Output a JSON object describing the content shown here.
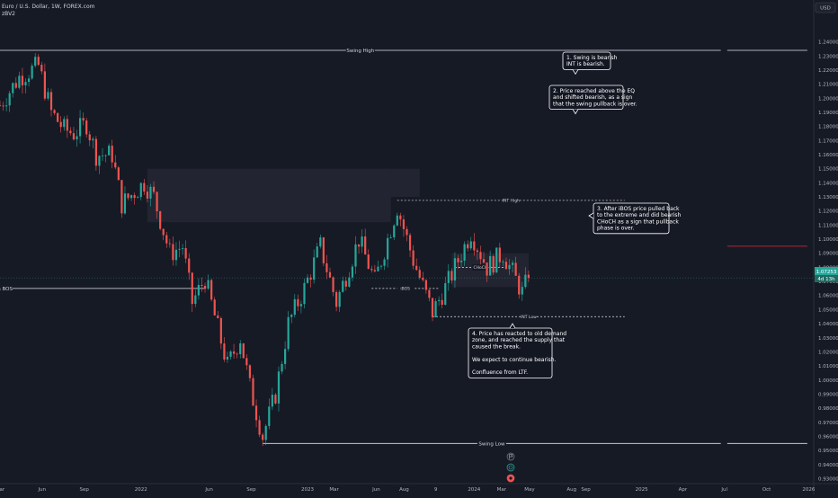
{
  "header": {
    "symbol_line": "Euro / U.S. Dollar, 1W, FOREX.com",
    "indicator": "zBV2",
    "currency_button": "USD"
  },
  "price_labels": {
    "last": "1.07253",
    "countdown": "4d 13h"
  },
  "colors": {
    "up": "#26a69a",
    "down": "#ef5350",
    "background": "#161a25",
    "line": "#e0e3eb",
    "zone": "#232733",
    "red_level": "#b22833"
  },
  "icons": [
    "flag-icon",
    "target-icon",
    "earnings-icon"
  ],
  "chart_data": {
    "type": "candlestick",
    "timeframe": "1W",
    "ylim": [
      0.9265,
      1.2557
    ],
    "y_ticks": [
      0.93,
      0.94,
      0.95,
      0.96,
      0.97,
      0.98,
      0.99,
      1.0,
      1.01,
      1.02,
      1.03,
      1.04,
      1.05,
      1.06,
      1.07,
      1.08,
      1.09,
      1.1,
      1.11,
      1.12,
      1.13,
      1.14,
      1.15,
      1.16,
      1.17,
      1.18,
      1.19,
      1.2,
      1.21,
      1.22,
      1.23,
      1.24
    ],
    "y_tick_labels": [
      "0.93000",
      "0.94000",
      "0.95000",
      "0.96000",
      "0.97000",
      "0.98000",
      "0.99000",
      "1.00000",
      "1.01000",
      "1.02000",
      "1.03000",
      "1.04000",
      "1.05000",
      "1.06000",
      "1.07000",
      "1.08000",
      "1.09000",
      "1.10000",
      "1.11000",
      "1.12000",
      "1.13000",
      "1.14000",
      "1.15000",
      "1.16000",
      "1.17000",
      "1.18000",
      "1.19000",
      "1.20000",
      "1.21000",
      "1.22000",
      "1.23000",
      "1.24000"
    ],
    "x_ticks": [
      {
        "label": "Mar",
        "date": "2021-03-01"
      },
      {
        "label": "Jun",
        "date": "2021-06-01"
      },
      {
        "label": "Sep",
        "date": "2021-09-01"
      },
      {
        "label": "2022",
        "date": "2022-01-03"
      },
      {
        "label": "Jun",
        "date": "2022-06-01"
      },
      {
        "label": "Sep",
        "date": "2022-09-01"
      },
      {
        "label": "2023",
        "date": "2023-01-02"
      },
      {
        "label": "Mar",
        "date": "2023-03-01"
      },
      {
        "label": "Jun",
        "date": "2023-06-01"
      },
      {
        "label": "Aug",
        "date": "2023-08-01"
      },
      {
        "label": "9",
        "date": "2023-10-09"
      },
      {
        "label": "2024",
        "date": "2024-01-01"
      },
      {
        "label": "Mar",
        "date": "2024-03-01"
      },
      {
        "label": "May",
        "date": "2024-05-01"
      },
      {
        "label": "Aug",
        "date": "2024-08-01"
      },
      {
        "label": "Sep",
        "date": "2024-09-01"
      },
      {
        "label": "2025",
        "date": "2025-01-01"
      },
      {
        "label": "Apr",
        "date": "2025-04-01"
      },
      {
        "label": "Jul",
        "date": "2025-07-01"
      },
      {
        "label": "Oct",
        "date": "2025-10-01"
      },
      {
        "label": "2026",
        "date": "2026-01-01"
      }
    ],
    "x_domain": [
      "2021-03-01",
      "2026-01-12"
    ],
    "waypoints": [
      {
        "date": "2021-03-01",
        "price": 1.195
      },
      {
        "date": "2021-04-12",
        "price": 1.215
      },
      {
        "date": "2021-05-24",
        "price": 1.223
      },
      {
        "date": "2021-06-21",
        "price": 1.19
      },
      {
        "date": "2021-07-19",
        "price": 1.178
      },
      {
        "date": "2021-08-09",
        "price": 1.175
      },
      {
        "date": "2021-09-06",
        "price": 1.182
      },
      {
        "date": "2021-09-27",
        "price": 1.16
      },
      {
        "date": "2021-11-01",
        "price": 1.16
      },
      {
        "date": "2021-11-22",
        "price": 1.125
      },
      {
        "date": "2022-01-10",
        "price": 1.14
      },
      {
        "date": "2022-01-31",
        "price": 1.13
      },
      {
        "date": "2022-03-07",
        "price": 1.09
      },
      {
        "date": "2022-04-04",
        "price": 1.095
      },
      {
        "date": "2022-04-25",
        "price": 1.055
      },
      {
        "date": "2022-05-23",
        "price": 1.072
      },
      {
        "date": "2022-07-11",
        "price": 1.01
      },
      {
        "date": "2022-08-08",
        "price": 1.03
      },
      {
        "date": "2022-08-29",
        "price": 0.995
      },
      {
        "date": "2022-09-26",
        "price": 0.96
      },
      {
        "date": "2022-10-24",
        "price": 0.99
      },
      {
        "date": "2022-11-21",
        "price": 1.04
      },
      {
        "date": "2022-12-26",
        "price": 1.065
      },
      {
        "date": "2023-01-30",
        "price": 1.095
      },
      {
        "date": "2023-03-06",
        "price": 1.055
      },
      {
        "date": "2023-04-24",
        "price": 1.1
      },
      {
        "date": "2023-05-29",
        "price": 1.07
      },
      {
        "date": "2023-07-17",
        "price": 1.123
      },
      {
        "date": "2023-08-21",
        "price": 1.085
      },
      {
        "date": "2023-10-02",
        "price": 1.048
      },
      {
        "date": "2023-11-06",
        "price": 1.07
      },
      {
        "date": "2023-12-25",
        "price": 1.105
      },
      {
        "date": "2024-01-29",
        "price": 1.08
      },
      {
        "date": "2024-03-04",
        "price": 1.09
      },
      {
        "date": "2024-04-15",
        "price": 1.062
      },
      {
        "date": "2024-04-29",
        "price": 1.0725
      }
    ],
    "levels": [
      {
        "name": "swing-high",
        "label": "Swing High",
        "price": 1.234,
        "from": "2021-03-01",
        "to": "2025-06-23"
      },
      {
        "name": "swing-high-extension",
        "label": "",
        "price": 1.234,
        "from": "2025-07-07",
        "to": "2025-12-29"
      },
      {
        "name": "swing-low",
        "label": "Swing Low",
        "price": 0.955,
        "from": "2022-09-26",
        "to": "2025-06-23"
      },
      {
        "name": "swing-low-extension",
        "label": "",
        "price": 0.955,
        "from": "2025-07-07",
        "to": "2025-12-29"
      },
      {
        "name": "bos",
        "label": "Bearish BOS",
        "price": 1.065,
        "from": "2021-03-01",
        "to": "2022-05-23"
      },
      {
        "name": "current-price",
        "label": "",
        "price": 1.0725,
        "from": "2021-03-01",
        "to": "2026-01-12"
      },
      {
        "name": "red-level",
        "label": "",
        "price": 1.095,
        "from": "2025-07-07",
        "to": "2025-12-29"
      }
    ],
    "dashed_levels": [
      {
        "name": "int-high",
        "label": "INT High",
        "price": 1.1275,
        "from": "2023-07-17",
        "to": "2024-11-25"
      },
      {
        "name": "int-low",
        "label": "INT Low",
        "price": 1.045,
        "from": "2023-10-02",
        "to": "2024-11-25"
      },
      {
        "name": "ibos",
        "label": "iBOS",
        "price": 1.065,
        "from": "2023-05-22",
        "to": "2023-10-16"
      },
      {
        "name": "choch",
        "label": "CHoCH",
        "price": 1.08,
        "from": "2023-11-20",
        "to": "2024-03-11"
      }
    ],
    "zones": [
      {
        "name": "supply-zone",
        "from": "2022-01-17",
        "to": "2023-07-03",
        "top": 1.15,
        "bottom": 1.112
      },
      {
        "name": "supply-zone-extension",
        "from": "2023-07-03",
        "to": "2023-09-04",
        "top": 1.15,
        "bottom": 1.13
      },
      {
        "name": "choch-zone",
        "from": "2023-11-13",
        "to": "2024-04-29",
        "top": 1.09,
        "bottom": 1.066
      }
    ],
    "annotations": [
      {
        "name": "annotation-1",
        "lines": [
          "1. Swing is bearish",
          "INT is bearish."
        ]
      },
      {
        "name": "annotation-2",
        "lines": [
          "2. Price reached above the EQ",
          "and shifted bearish, as a sign",
          "that the swing pullback is over."
        ]
      },
      {
        "name": "annotation-3",
        "lines": [
          "3. After iBOS price pulled back",
          "to the extreme and did bearish",
          "CHoCH as a sign that pullback",
          "phase is over."
        ]
      },
      {
        "name": "annotation-4",
        "lines": [
          "4. Price has reacted to old demand",
          "zone, and reached the supply that",
          "caused the break.",
          "",
          "We expect to continue bearish.",
          "",
          "Confluence from LTF."
        ]
      }
    ]
  }
}
